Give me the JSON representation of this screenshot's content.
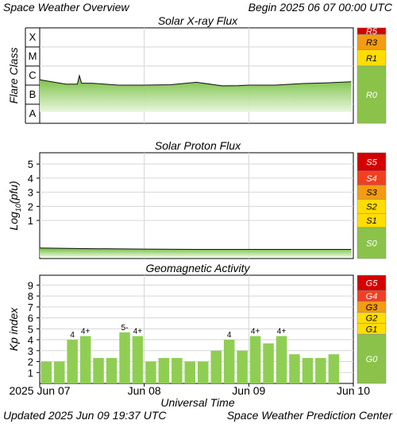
{
  "header": {
    "title": "Space Weather Overview",
    "begin": "Begin 2025 06 07 00:00 UTC"
  },
  "footer": {
    "updated": "Updated 2025 Jun 09 19:37 UTC",
    "center": "Space Weather Prediction Center"
  },
  "xaxis": {
    "label": "Universal Time",
    "ticks": [
      "2025 Jun 07",
      "Jun 08",
      "Jun 09",
      "Jun 10"
    ],
    "range_days": [
      0,
      3
    ]
  },
  "colors": {
    "bar_green": "#8fce53",
    "flux_green": "#7cc442",
    "scale_red": "#d40000",
    "scale_red_light": "#f04020",
    "scale_orange": "#f39c12",
    "scale_yellow": "#ffdd00",
    "scale_green": "#8bc34a"
  },
  "chart_data": [
    {
      "type": "area",
      "title": "Solar X-ray Flux",
      "ylabel": "Flare Class",
      "class_labels": [
        "A",
        "B",
        "C",
        "M",
        "X"
      ],
      "ylim_class_index": [
        0,
        5
      ],
      "x_days": [
        0,
        0.25,
        0.36,
        0.38,
        0.4,
        0.5,
        0.75,
        1.0,
        1.25,
        1.5,
        1.75,
        1.9,
        2.0,
        2.25,
        2.5,
        2.75,
        2.98
      ],
      "y_class_index": [
        2.28,
        2.05,
        2.05,
        2.5,
        2.1,
        2.1,
        2.0,
        2.0,
        2.02,
        2.15,
        1.96,
        1.97,
        2.0,
        2.0,
        2.08,
        2.12,
        2.18
      ],
      "scale": {
        "labels": [
          "R5",
          "R3",
          "R1",
          "R0"
        ],
        "colors": [
          "#d40000",
          "#f39c12",
          "#ffdd00",
          "#8bc34a"
        ]
      }
    },
    {
      "type": "area",
      "title": "Solar Proton Flux",
      "ylabel": "Log10(pfu)",
      "ytick_labels": [
        "1",
        "2",
        "3",
        "4",
        "5"
      ],
      "ylim": [
        -1.7,
        5.8
      ],
      "x_days": [
        0,
        0.5,
        1.0,
        1.5,
        2.0,
        2.5,
        2.98
      ],
      "y_log_pfu": [
        -0.95,
        -1.0,
        -1.03,
        -1.05,
        -1.05,
        -1.05,
        -1.05
      ],
      "scale": {
        "labels": [
          "S5",
          "S4",
          "S3",
          "S2",
          "S1",
          "S0"
        ],
        "colors": [
          "#d40000",
          "#f04020",
          "#f39c12",
          "#ffdd00",
          "#ffdd00",
          "#8bc34a"
        ]
      }
    },
    {
      "type": "bar",
      "title": "Geomagnetic Activity",
      "ylabel": "Kp index",
      "ytick_labels": [
        "1",
        "2",
        "3",
        "4",
        "5",
        "6",
        "7",
        "8",
        "9"
      ],
      "ylim": [
        0,
        9.9
      ],
      "kp_values": [
        2.0,
        2.0,
        4.0,
        4.33,
        2.33,
        2.33,
        4.67,
        4.33,
        2.0,
        2.33,
        2.33,
        2.0,
        2.0,
        3.0,
        4.0,
        3.0,
        4.33,
        3.67,
        4.33,
        2.67,
        2.33,
        2.33,
        2.67
      ],
      "bar_labels": [
        "",
        "",
        "4",
        "4+",
        "",
        "",
        "5-",
        "4+",
        "",
        "",
        "",
        "",
        "",
        "",
        "4",
        "",
        "4+",
        "",
        "4+",
        "",
        "",
        "",
        ""
      ],
      "scale": {
        "labels": [
          "G5",
          "G4",
          "G3",
          "G2",
          "G1",
          "G0"
        ],
        "colors": [
          "#d40000",
          "#f04020",
          "#f39c12",
          "#ffdd00",
          "#ffdd00",
          "#8bc34a"
        ]
      }
    }
  ]
}
